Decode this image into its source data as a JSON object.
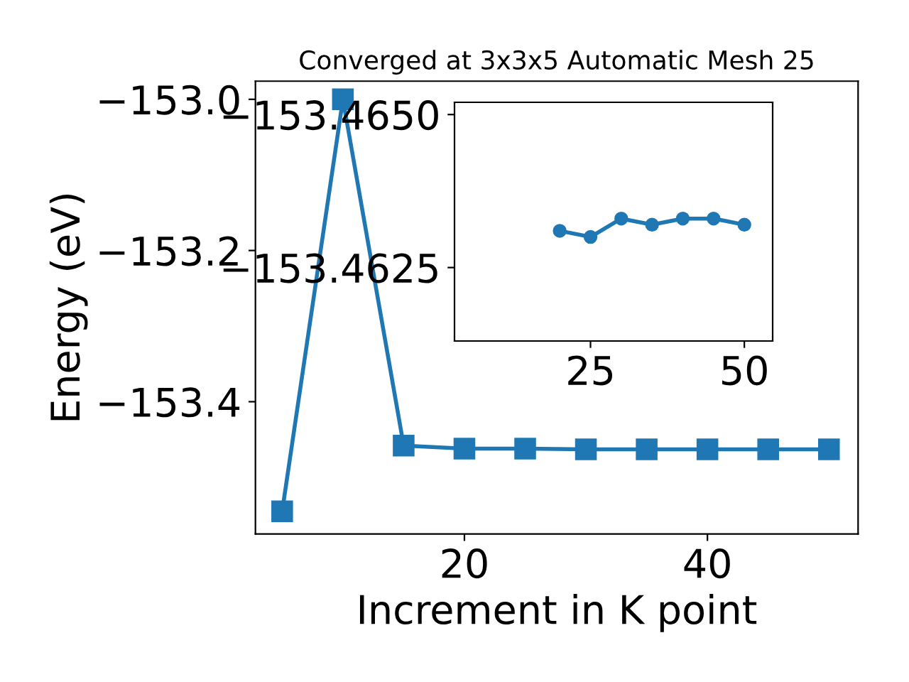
{
  "chart_data": [
    {
      "type": "line",
      "title": "Converged at 3x3x5 Automatic Mesh 25",
      "xlabel": "Increment in K point",
      "ylabel": "Energy (eV)",
      "x": [
        5,
        10,
        15,
        20,
        25,
        30,
        35,
        40,
        45,
        50
      ],
      "series": [
        {
          "color": "#1f77b4",
          "values": [
            -153.545,
            -153.0,
            -153.458,
            -153.462,
            -153.462,
            -153.463,
            -153.463,
            -153.463,
            -153.463,
            -153.463
          ]
        }
      ],
      "marker": "square",
      "line_style": "solid",
      "xlim": [
        2.8,
        52.4
      ],
      "ylim": [
        -153.575,
        -152.976
      ],
      "xticks": [
        20,
        40
      ],
      "yticks": [
        -153.4,
        -153.2,
        {
          "value": -153.0,
          "label": "−153.0"
        }
      ],
      "grid": false,
      "legend": false
    },
    {
      "type": "line",
      "x": [
        20,
        25,
        30,
        35,
        40,
        45,
        50
      ],
      "series": [
        {
          "color": "#1f77b4",
          "values": [
            -153.4631,
            -153.463,
            -153.4633,
            -153.4632,
            -153.4633,
            -153.4633,
            -153.4632
          ]
        }
      ],
      "marker": "circle",
      "line_style": "solid",
      "xlim": [
        2.9,
        54.6
      ],
      "ylim": [
        -153.4613,
        -153.4652
      ],
      "xticks": [
        25,
        50
      ],
      "yticks": [
        {
          "value": -153.465,
          "label": "−153.4650"
        },
        {
          "value": -153.4625,
          "label": "−153.4625"
        }
      ],
      "grid": false,
      "legend": false
    }
  ]
}
